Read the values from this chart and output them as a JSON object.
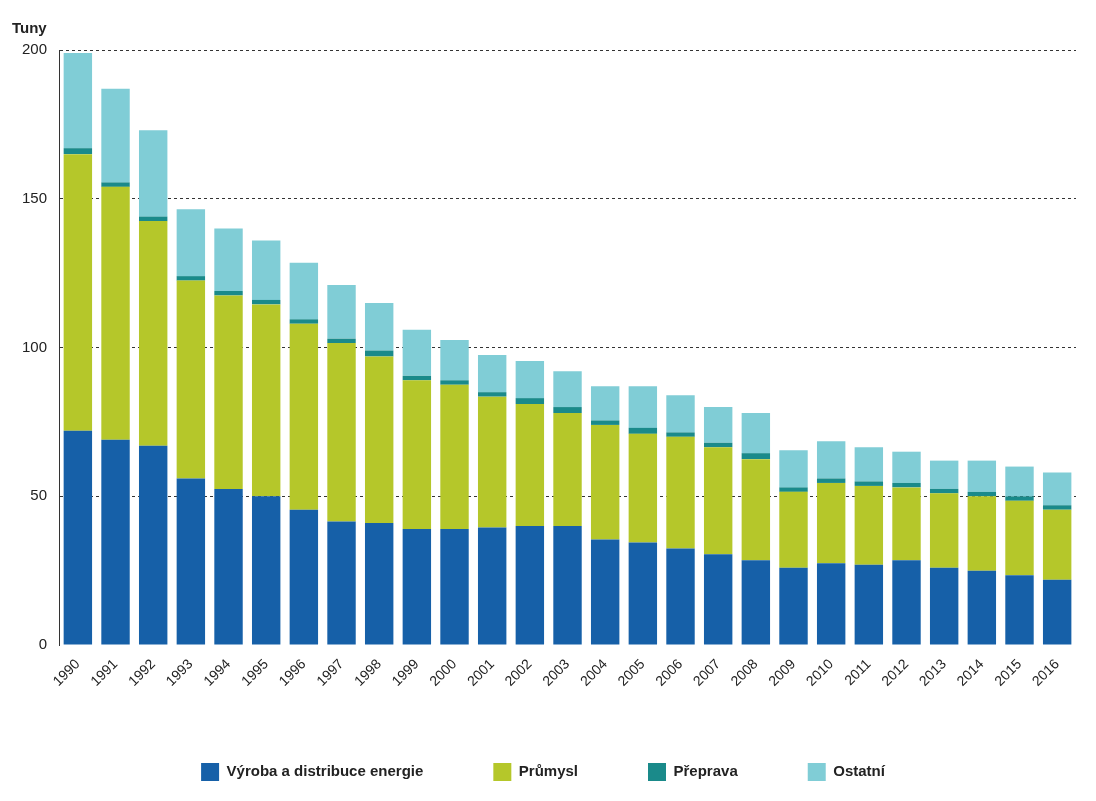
{
  "chart_data": {
    "type": "bar",
    "ylabel": "Tuny",
    "stacked": true,
    "grid": "y",
    "legend": "bottom",
    "categories": [
      "1990",
      "1991",
      "1992",
      "1993",
      "1994",
      "1995",
      "1996",
      "1997",
      "1998",
      "1999",
      "2000",
      "2001",
      "2002",
      "2003",
      "2004",
      "2005",
      "2006",
      "2007",
      "2008",
      "2009",
      "2010",
      "2011",
      "2012",
      "2013",
      "2014",
      "2015",
      "2016"
    ],
    "ylim": [
      0,
      200
    ],
    "yticks": [
      0,
      50,
      100,
      150,
      200
    ],
    "series": [
      {
        "name": "Výroba a distribuce energie",
        "color": "#1660a8",
        "values": [
          72,
          69,
          67,
          56,
          52.5,
          50,
          45.5,
          41.5,
          41,
          39,
          39,
          39.5,
          40,
          40,
          35.5,
          34.5,
          32.5,
          30.5,
          28.5,
          26,
          27.5,
          27,
          28.5,
          26,
          25,
          23.5,
          22
        ]
      },
      {
        "name": "Průmysl",
        "color": "#b5c72a",
        "values": [
          93,
          85,
          75.5,
          66.5,
          65,
          64.5,
          62.5,
          60,
          56,
          50,
          48.5,
          44,
          41,
          38,
          38.5,
          36.5,
          37.5,
          36,
          34,
          25.5,
          27,
          26.5,
          24.5,
          25,
          25,
          25,
          23.5
        ]
      },
      {
        "name": "Přeprava",
        "color": "#1a8a8a",
        "values": [
          2,
          1.5,
          1.5,
          1.5,
          1.5,
          1.5,
          1.5,
          1.5,
          2,
          1.5,
          1.5,
          1.5,
          2,
          2,
          1.5,
          2,
          1.5,
          1.5,
          2,
          1.5,
          1.5,
          1.5,
          1.5,
          1.5,
          1.5,
          1.5,
          1.5
        ]
      },
      {
        "name": "Ostatní",
        "color": "#80cdd6",
        "values": [
          32,
          31.5,
          29,
          22.5,
          21,
          20,
          19,
          18,
          16,
          15.5,
          13.5,
          12.5,
          12.5,
          12,
          11.5,
          14,
          12.5,
          12,
          13.5,
          12.5,
          12.5,
          11.5,
          10.5,
          9.5,
          10.5,
          10,
          11
        ]
      }
    ]
  }
}
